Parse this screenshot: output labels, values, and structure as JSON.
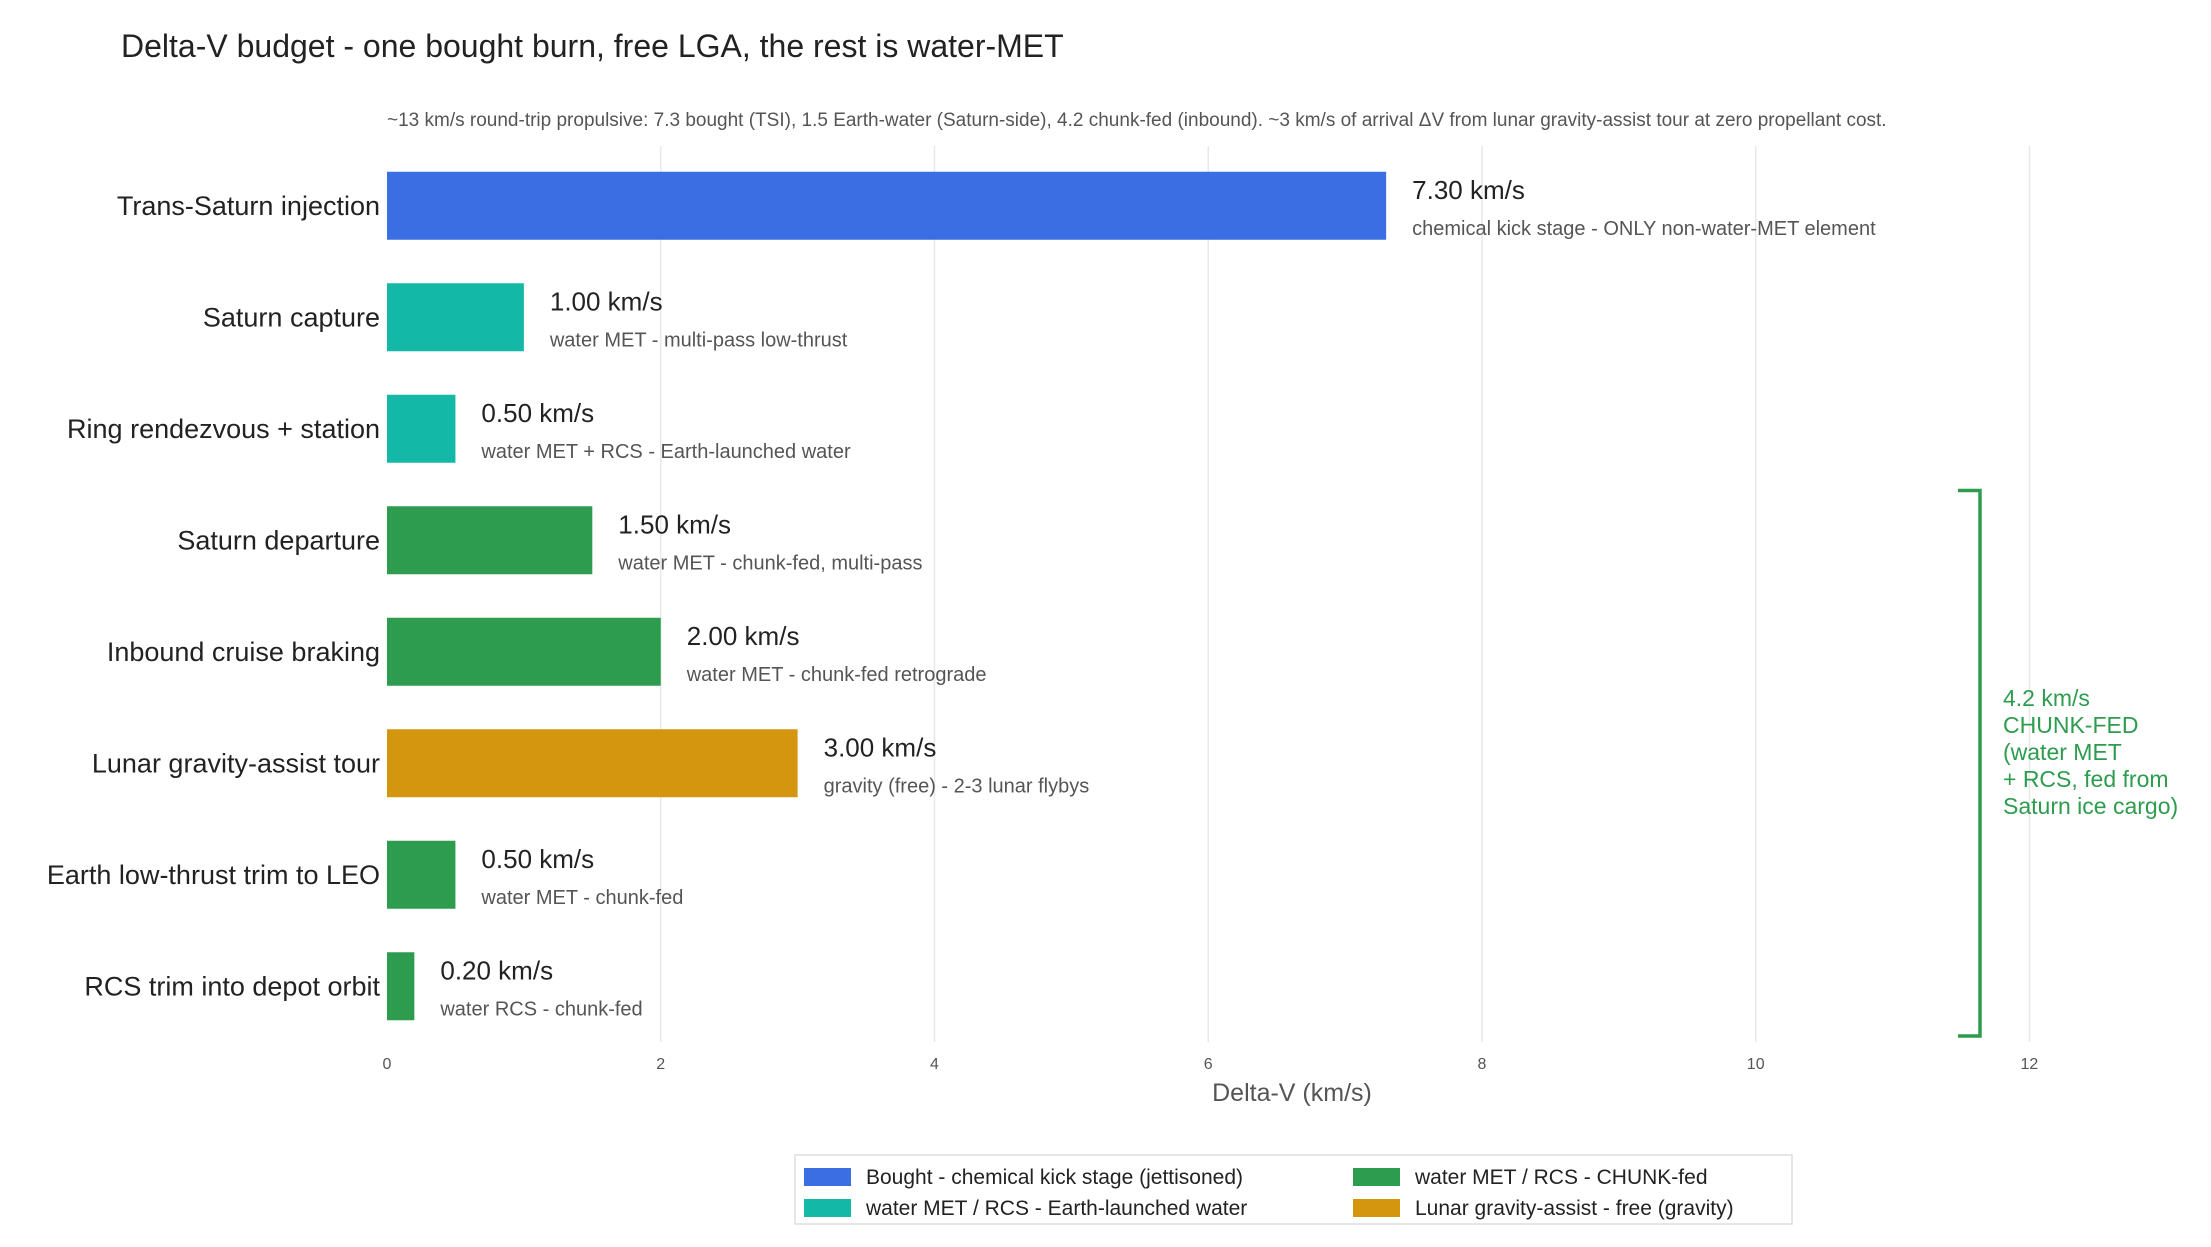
{
  "chart_data": {
    "type": "bar",
    "orientation": "horizontal",
    "title": "Delta-V budget  -  one bought burn, free LGA, the rest is water-MET",
    "subtitle": "~13 km/s round-trip propulsive: 7.3 bought (TSI), 1.5 Earth-water (Saturn-side), 4.2 chunk-fed (inbound).  ~3 km/s of arrival ΔV from lunar gravity-assist tour at zero propellant cost.",
    "xlabel": "Delta-V (km/s)",
    "ylabel": "",
    "xlim": [
      0,
      13.1
    ],
    "xticks": [
      0,
      2,
      4,
      6,
      8,
      10,
      12
    ],
    "grid": true,
    "colors": {
      "bought": "#3c6ee3",
      "earth_water": "#14b8a6",
      "chunk_fed": "#2e9c4e",
      "gravity": "#d4960f"
    },
    "bars": [
      {
        "category": "Trans-Saturn injection",
        "value": 7.3,
        "value_label": "7.30 km/s",
        "note": "chemical kick stage  -  ONLY non-water-MET element",
        "group": "bought"
      },
      {
        "category": "Saturn capture",
        "value": 1.0,
        "value_label": "1.00 km/s",
        "note": "water MET  -  multi-pass low-thrust",
        "group": "earth_water"
      },
      {
        "category": "Ring rendezvous + station",
        "value": 0.5,
        "value_label": "0.50 km/s",
        "note": "water MET + RCS  -  Earth-launched water",
        "group": "earth_water"
      },
      {
        "category": "Saturn departure",
        "value": 1.5,
        "value_label": "1.50 km/s",
        "note": "water MET  -  chunk-fed, multi-pass",
        "group": "chunk_fed"
      },
      {
        "category": "Inbound cruise braking",
        "value": 2.0,
        "value_label": "2.00 km/s",
        "note": "water MET  -  chunk-fed retrograde",
        "group": "chunk_fed"
      },
      {
        "category": "Lunar gravity-assist tour",
        "value": 3.0,
        "value_label": "3.00 km/s",
        "note": "gravity (free)  -  2-3 lunar flybys",
        "group": "gravity"
      },
      {
        "category": "Earth low-thrust trim to LEO",
        "value": 0.5,
        "value_label": "0.50 km/s",
        "note": "water MET  -  chunk-fed",
        "group": "chunk_fed"
      },
      {
        "category": "RCS trim into depot orbit",
        "value": 0.2,
        "value_label": "0.20 km/s",
        "note": "water RCS  -  chunk-fed",
        "group": "chunk_fed"
      }
    ],
    "bracket": {
      "text_lines": [
        "4.2 km/s",
        "CHUNK-FED",
        "(water MET",
        "+ RCS, fed from",
        "Saturn ice cargo)"
      ],
      "from_category": "Saturn departure",
      "to_category": "RCS trim into depot orbit",
      "color": "#2e9c4e"
    },
    "legend": {
      "placement": "bottom",
      "entries": [
        {
          "label": "Bought  -  chemical kick stage (jettisoned)",
          "group": "bought"
        },
        {
          "label": "water MET / RCS  -  CHUNK-fed",
          "group": "chunk_fed"
        },
        {
          "label": "water MET / RCS  -  Earth-launched water",
          "group": "earth_water"
        },
        {
          "label": "Lunar gravity-assist  -  free (gravity)",
          "group": "gravity"
        }
      ]
    }
  }
}
